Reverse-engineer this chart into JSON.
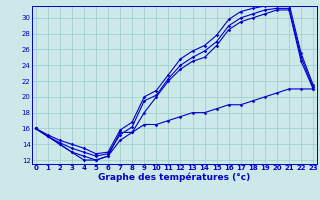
{
  "xlabel": "Graphe des températures (°c)",
  "bg_color": "#cce8e8",
  "grid_color": "#99cccc",
  "line_color": "#0000cc",
  "line1_y": [
    16.0,
    15.0,
    14.0,
    13.0,
    12.5,
    12.0,
    12.5,
    15.5,
    15.5,
    18.0,
    20.0,
    22.0,
    23.5,
    24.5,
    25.0,
    26.5,
    28.5,
    29.5,
    30.0,
    30.5,
    31.0,
    31.0,
    24.5,
    21.0
  ],
  "line2_y": [
    16.0,
    15.0,
    14.2,
    13.5,
    13.0,
    12.5,
    12.8,
    15.2,
    16.2,
    19.5,
    20.2,
    22.3,
    24.0,
    25.0,
    25.8,
    27.0,
    29.0,
    30.0,
    30.5,
    31.0,
    31.2,
    31.2,
    25.0,
    21.2
  ],
  "line3_y": [
    16.0,
    15.2,
    14.5,
    14.0,
    13.5,
    12.8,
    13.0,
    15.8,
    16.8,
    20.0,
    20.8,
    22.8,
    24.8,
    25.8,
    26.5,
    27.8,
    29.8,
    30.8,
    31.2,
    31.5,
    31.8,
    31.8,
    25.5,
    21.5
  ],
  "line_bottom_y": [
    16.0,
    15.0,
    14.0,
    13.0,
    12.0,
    12.0,
    12.5,
    14.5,
    15.5,
    16.5,
    16.5,
    17.0,
    17.5,
    18.0,
    18.0,
    18.5,
    19.0,
    19.0,
    19.5,
    20.0,
    20.5,
    21.0,
    21.0,
    21.0
  ],
  "x": [
    0,
    1,
    2,
    3,
    4,
    5,
    6,
    7,
    8,
    9,
    10,
    11,
    12,
    13,
    14,
    15,
    16,
    17,
    18,
    19,
    20,
    21,
    22,
    23
  ],
  "ylim": [
    11.5,
    31.5
  ],
  "xlim": [
    -0.3,
    23.3
  ],
  "yticks": [
    12,
    14,
    16,
    18,
    20,
    22,
    24,
    26,
    28,
    30
  ],
  "xticks": [
    0,
    1,
    2,
    3,
    4,
    5,
    6,
    7,
    8,
    9,
    10,
    11,
    12,
    13,
    14,
    15,
    16,
    17,
    18,
    19,
    20,
    21,
    22,
    23
  ],
  "xlabel_fontsize": 6.5,
  "tick_fontsize": 5.0
}
